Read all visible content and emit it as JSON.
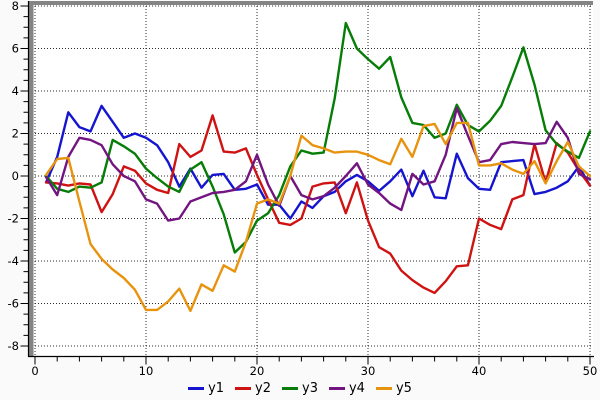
{
  "figure": {
    "background": "#fafafa",
    "canvas_background": "#ffffff",
    "frame_color": "#848484",
    "axis_color": "#000000",
    "grid_color": "#2a2a2a",
    "tick_label_color": "#000000"
  },
  "chart_data": {
    "type": "line",
    "title": "",
    "xlabel": "",
    "ylabel": "",
    "x_range": [
      0,
      50
    ],
    "y_range": [
      -8,
      8
    ],
    "grid": "dotted",
    "legend_position": "bottom-center",
    "x_major_ticks": [
      0,
      10,
      20,
      30,
      40,
      50
    ],
    "x_tick_labels": [
      "0",
      "10",
      "20",
      "30",
      "40",
      "50"
    ],
    "x_minor_step": 2,
    "y_major_ticks": [
      -8,
      -6,
      -4,
      -2,
      0,
      2,
      4,
      6,
      8
    ],
    "y_tick_labels": [
      "-8",
      "-6",
      "-4",
      "-2",
      "0",
      "2",
      "4",
      "6",
      "8"
    ],
    "y_minor_step": 0.5,
    "x_start": 1,
    "series": [
      {
        "name": "y1",
        "color": "#1515cf",
        "values": [
          -0.3,
          0.9,
          3.0,
          2.3,
          2.1,
          3.3,
          2.55,
          1.8,
          2.0,
          1.8,
          1.45,
          0.65,
          -0.5,
          0.35,
          -0.55,
          0.05,
          0.1,
          -0.65,
          -0.6,
          -0.4,
          -1.35,
          -1.35,
          -2.0,
          -1.2,
          -1.5,
          -0.95,
          -0.75,
          -0.25,
          0.05,
          -0.25,
          -0.7,
          -0.25,
          0.3,
          -0.95,
          0.25,
          -1.0,
          -1.05,
          1.05,
          -0.1,
          -0.6,
          -0.65,
          0.65,
          0.7,
          0.75,
          -0.85,
          -0.75,
          -0.55,
          -0.25,
          0.45,
          -0.45
        ]
      },
      {
        "name": "y2",
        "color": "#cf1212",
        "values": [
          -0.3,
          -0.35,
          -0.45,
          -0.35,
          -0.4,
          -1.7,
          -0.85,
          0.45,
          0.25,
          -0.35,
          -0.65,
          -0.8,
          1.5,
          0.9,
          1.2,
          2.85,
          1.15,
          1.1,
          1.3,
          0.05,
          -1.1,
          -2.2,
          -2.3,
          -2.0,
          -0.5,
          -0.35,
          -0.3,
          -1.75,
          -0.3,
          -2.1,
          -3.35,
          -3.65,
          -4.45,
          -4.9,
          -5.25,
          -5.5,
          -4.95,
          -4.25,
          -4.2,
          -2.0,
          -2.3,
          -2.5,
          -1.1,
          -0.9,
          1.5,
          -0.3,
          1.55,
          1.1,
          0.25,
          -0.45
        ]
      },
      {
        "name": "y3",
        "color": "#067d06",
        "values": [
          0.0,
          -0.6,
          -0.75,
          -0.5,
          -0.55,
          -0.3,
          1.7,
          1.4,
          1.05,
          0.35,
          -0.1,
          -0.5,
          -0.75,
          0.3,
          0.65,
          -0.5,
          -1.8,
          -3.6,
          -3.1,
          -2.1,
          -1.75,
          -0.9,
          0.45,
          1.2,
          1.05,
          1.1,
          3.65,
          7.2,
          6.0,
          5.5,
          5.05,
          5.6,
          3.7,
          2.5,
          2.4,
          1.8,
          2.0,
          3.35,
          2.4,
          2.1,
          2.6,
          3.3,
          4.65,
          6.05,
          4.3,
          2.15,
          1.5,
          1.15,
          0.85,
          2.1
        ]
      },
      {
        "name": "y4",
        "color": "#721580",
        "values": [
          -0.05,
          -0.9,
          0.9,
          1.8,
          1.7,
          1.45,
          0.55,
          0.0,
          -0.25,
          -1.1,
          -1.3,
          -2.1,
          -2.0,
          -1.2,
          -1.0,
          -0.8,
          -0.75,
          -0.65,
          -0.25,
          1.0,
          -0.4,
          -1.4,
          0.0,
          -0.9,
          -1.1,
          -0.95,
          -0.55,
          0.0,
          0.6,
          -0.4,
          -0.8,
          -1.3,
          -1.6,
          0.1,
          -0.4,
          -0.25,
          1.0,
          3.2,
          1.9,
          0.65,
          0.75,
          1.5,
          1.6,
          1.55,
          1.5,
          1.55,
          2.55,
          1.8,
          0.1,
          -0.15
        ]
      },
      {
        "name": "y5",
        "color": "#e8930e",
        "values": [
          0.05,
          0.8,
          0.85,
          -1.2,
          -3.2,
          -3.9,
          -4.4,
          -4.8,
          -5.35,
          -6.3,
          -6.3,
          -5.9,
          -5.3,
          -6.35,
          -5.1,
          -5.4,
          -4.2,
          -4.5,
          -3.1,
          -1.3,
          -1.1,
          -1.3,
          0.0,
          1.9,
          1.45,
          1.3,
          1.1,
          1.15,
          1.15,
          1.0,
          0.75,
          0.55,
          1.75,
          0.9,
          2.35,
          2.45,
          1.5,
          2.5,
          2.5,
          0.5,
          0.5,
          0.6,
          0.3,
          0.1,
          0.7,
          -0.35,
          0.7,
          1.6,
          0.45,
          0.0
        ]
      }
    ]
  }
}
